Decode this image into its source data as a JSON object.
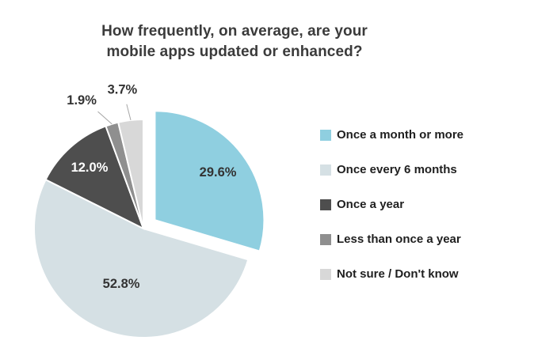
{
  "title": {
    "line1": "How frequently, on average, are your",
    "line2": "mobile apps updated or enhanced?"
  },
  "chart_data": {
    "type": "pie",
    "title": "How frequently, on average, are your mobile apps updated or enhanced?",
    "legend_position": "right",
    "direction": "clockwise",
    "start_angle_deg": 0,
    "slices": [
      {
        "label": "Once a month or more",
        "value": 29.6,
        "display": "29.6%",
        "color": "#8fcfe0",
        "label_color": "#333333",
        "explode": 18,
        "label_r": 0.72,
        "label_angle_offset": 0,
        "leader": false
      },
      {
        "label": "Once every 6 months",
        "value": 52.8,
        "display": "52.8%",
        "color": "#d5e0e4",
        "label_color": "#333333",
        "explode": 0,
        "label_r": 0.55,
        "label_angle_offset": 0,
        "leader": false
      },
      {
        "label": "Once a year",
        "value": 12.0,
        "display": "12.0%",
        "color": "#4e4e4e",
        "label_color": "#ffffff",
        "explode": 0,
        "label_r": 0.74,
        "label_angle_offset": 0,
        "leader": false
      },
      {
        "label": "Less than once a year",
        "value": 1.9,
        "display": "1.9%",
        "color": "#8f8f8f",
        "label_color": "#333333",
        "explode": 0,
        "label_r": 1.3,
        "label_angle_offset": -9,
        "leader": true
      },
      {
        "label": "Not sure / Don't know",
        "value": 3.7,
        "display": "3.7%",
        "color": "#d8d8d8",
        "label_color": "#333333",
        "explode": 0,
        "label_r": 1.28,
        "label_angle_offset": -2,
        "leader": true
      }
    ]
  }
}
